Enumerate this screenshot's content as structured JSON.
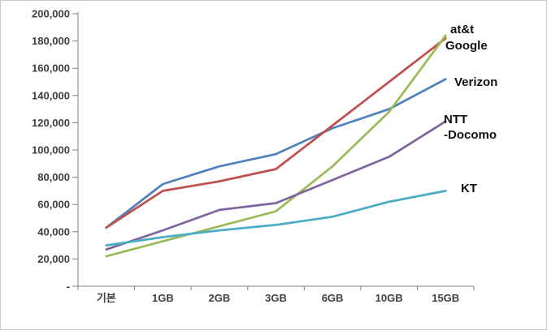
{
  "chart_data": {
    "type": "line",
    "title": "",
    "xlabel": "",
    "ylabel": "",
    "categories": [
      "기본",
      "1GB",
      "2GB",
      "3GB",
      "6GB",
      "10GB",
      "15GB"
    ],
    "series": [
      {
        "name": "Verizon",
        "color": "#4F81BD",
        "values": [
          43000,
          75000,
          88000,
          97000,
          116000,
          130000,
          152000
        ]
      },
      {
        "name": "at&t",
        "color": "#C0504D",
        "values": [
          43000,
          70000,
          77000,
          86000,
          118000,
          150000,
          182000
        ]
      },
      {
        "name": "Google",
        "color": "#9BBB59",
        "values": [
          22000,
          33000,
          44000,
          55000,
          88000,
          128000,
          184000
        ]
      },
      {
        "name": "NTT-Docomo",
        "color": "#8064A2",
        "values": [
          27000,
          41000,
          56000,
          61000,
          78000,
          95000,
          121000
        ]
      },
      {
        "name": "KT",
        "color": "#4BACC6",
        "values": [
          30000,
          36000,
          41000,
          45000,
          51000,
          62000,
          70000
        ]
      }
    ],
    "ylim": [
      0,
      200000
    ],
    "ytick_step": 20000,
    "ytick_labels": [
      "-",
      "20,000",
      "40,000",
      "60,000",
      "80,000",
      "100,000",
      "120,000",
      "140,000",
      "160,000",
      "180,000",
      "200,000"
    ],
    "grid": false,
    "legend_position": "right-annotations",
    "annotations": [
      {
        "series": "at&t",
        "lines": [
          "at&t"
        ]
      },
      {
        "series": "Google",
        "lines": [
          "Google"
        ]
      },
      {
        "series": "Verizon",
        "lines": [
          "Verizon"
        ]
      },
      {
        "series": "NTT-Docomo",
        "lines": [
          "NTT",
          "-Docomo"
        ]
      },
      {
        "series": "KT",
        "lines": [
          "KT"
        ]
      }
    ],
    "axis_color": "#808080",
    "text_color": "#3f3f3f"
  }
}
